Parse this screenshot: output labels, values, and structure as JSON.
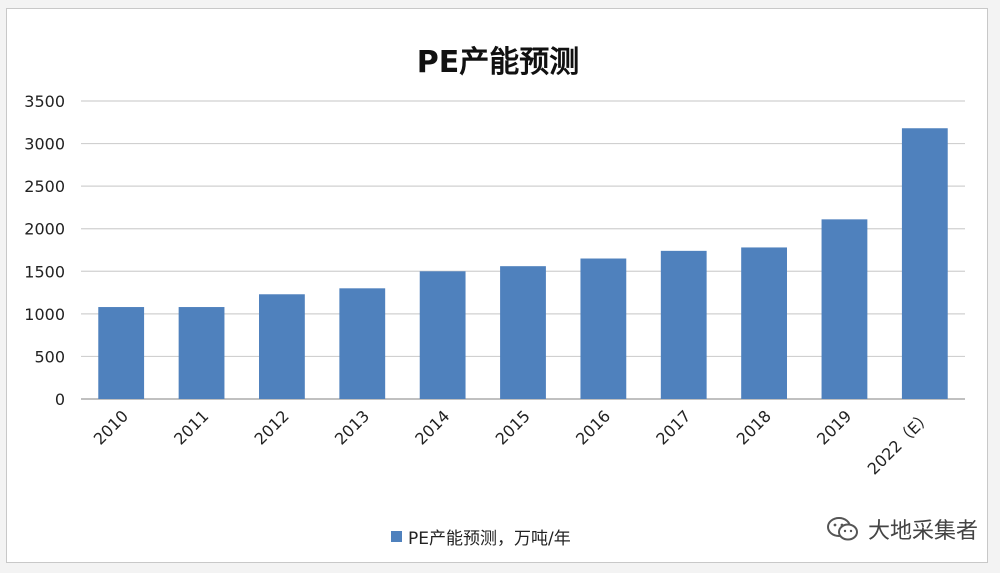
{
  "chart_data": {
    "type": "bar",
    "title": "PE产能预测",
    "categories": [
      "2010",
      "2011",
      "2012",
      "2013",
      "2014",
      "2015",
      "2016",
      "2017",
      "2018",
      "2019",
      "2022（E）"
    ],
    "series": [
      {
        "name": "PE产能预测，万吨/年",
        "values": [
          1080,
          1080,
          1230,
          1300,
          1500,
          1560,
          1650,
          1740,
          1780,
          2110,
          3180
        ],
        "color": "#4f81bd"
      }
    ],
    "yticks": [
      0,
      500,
      1000,
      1500,
      2000,
      2500,
      3000,
      3500
    ],
    "ylim": [
      0,
      3500
    ],
    "grid": true,
    "legend_position": "bottom"
  },
  "watermark": {
    "text": "大地采集者",
    "icon": "wechat-icon"
  }
}
